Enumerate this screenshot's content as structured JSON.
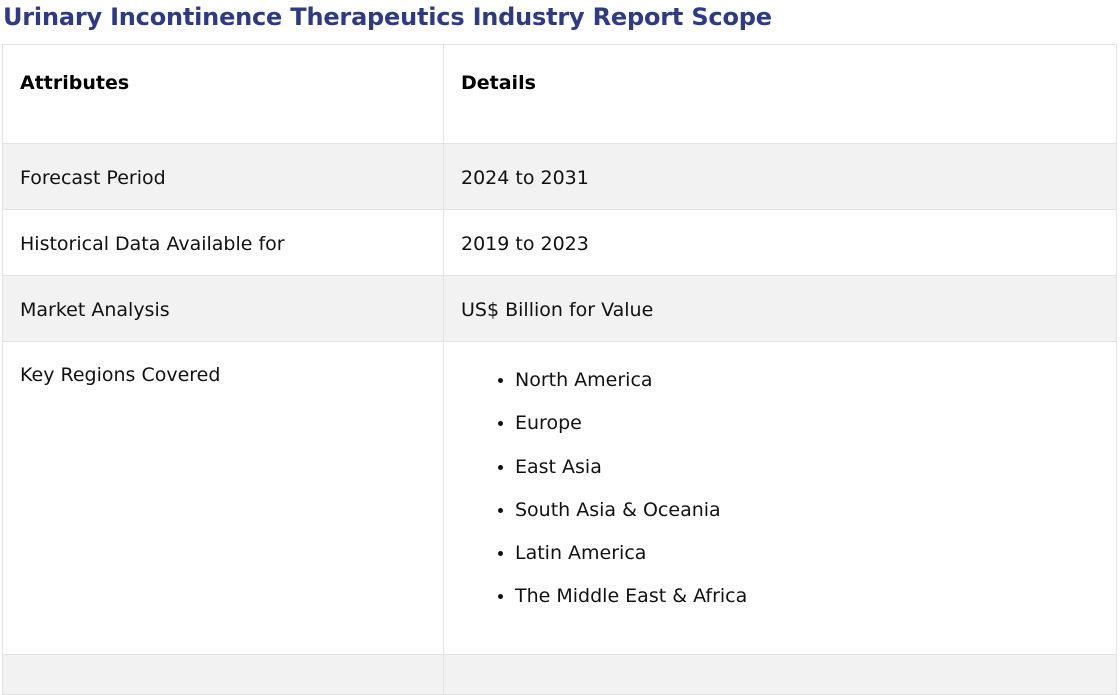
{
  "title": "Urinary Incontinence Therapeutics Industry Report Scope",
  "table": {
    "headers": [
      "Attributes",
      "Details"
    ],
    "rows": [
      {
        "attribute": "Forecast Period",
        "detail": "2024 to 2031"
      },
      {
        "attribute": "Historical Data Available for",
        "detail": "2019 to 2023"
      },
      {
        "attribute": "Market Analysis",
        "detail": "US$ Billion for Value"
      }
    ],
    "regions": {
      "attribute": "Key Regions Covered",
      "items": [
        "North America",
        "Europe",
        "East Asia",
        "South Asia & Oceania",
        "Latin America",
        "The Middle East & Africa"
      ]
    }
  },
  "colors": {
    "title": "#2e3a84",
    "shaded_row": "#f2f2f2",
    "border": "#e3e3e3"
  }
}
